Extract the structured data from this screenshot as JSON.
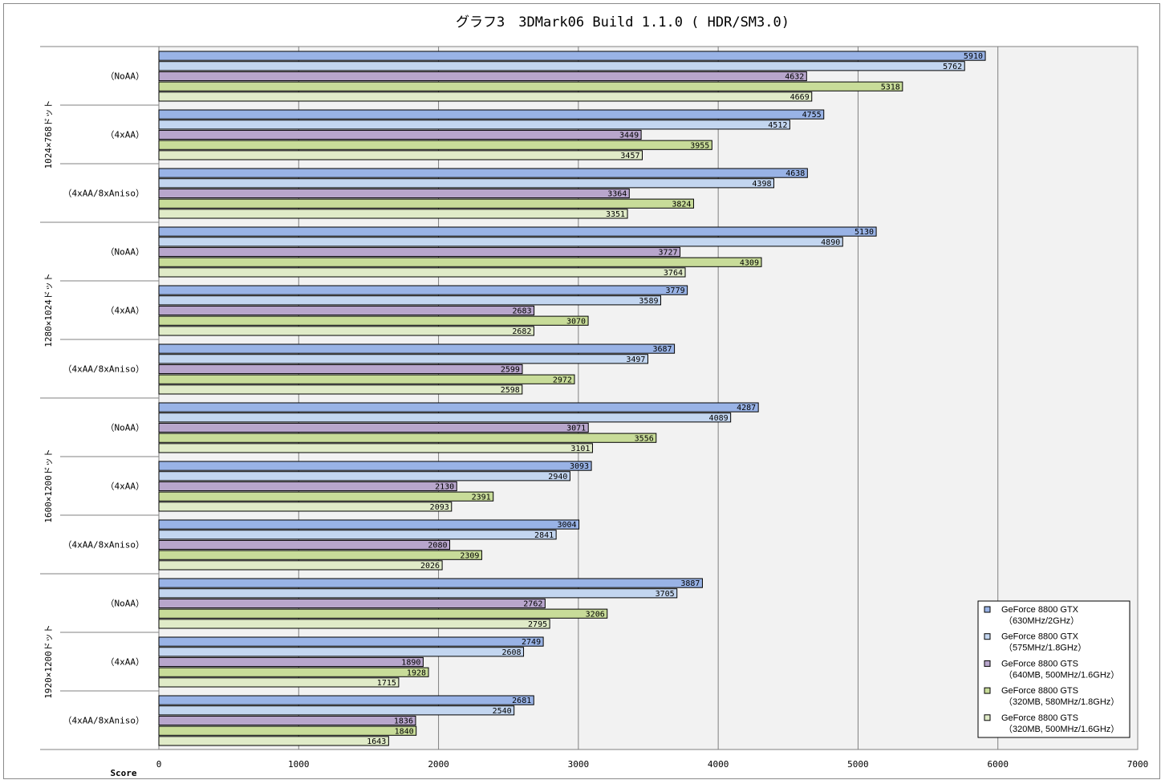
{
  "chart_data": {
    "type": "bar",
    "orientation": "horizontal",
    "title": "グラフ3　3DMark06 Build 1.1.0 ( HDR/SM3.0)",
    "xlabel": "Score",
    "xlim": [
      0,
      7000
    ],
    "xticks": [
      0,
      1000,
      2000,
      3000,
      4000,
      5000,
      6000,
      7000
    ],
    "grid": true,
    "legend_position": "bottom-right",
    "groups": [
      {
        "label": "1024×768ドット",
        "categories": [
          "（NoAA）",
          "（4xAA）",
          "（4xAA/8xAniso）"
        ]
      },
      {
        "label": "1280×1024ドット",
        "categories": [
          "（NoAA）",
          "（4xAA）",
          "（4xAA/8xAniso）"
        ]
      },
      {
        "label": "1600×1200ドット",
        "categories": [
          "（NoAA）",
          "（4xAA）",
          "（4xAA/8xAniso）"
        ]
      },
      {
        "label": "1920×1200ドット",
        "categories": [
          "（NoAA）",
          "（4xAA）",
          "（4xAA/8xAniso）"
        ]
      }
    ],
    "series": [
      {
        "name": [
          "GeForce 8800 GTX",
          "（630MHz/2GHz）"
        ],
        "color": "#99b3e6",
        "values": [
          5910,
          4755,
          4638,
          5130,
          3779,
          3687,
          4287,
          3093,
          3004,
          3887,
          2749,
          2681
        ]
      },
      {
        "name": [
          "GeForce 8800 GTX",
          "（575MHz/1.8GHz）"
        ],
        "color": "#c3d6f0",
        "values": [
          5762,
          4512,
          4398,
          4890,
          3589,
          3497,
          4089,
          2940,
          2841,
          3705,
          2608,
          2540
        ]
      },
      {
        "name": [
          "GeForce 8800 GTS",
          "（640MB, 500MHz/1.6GHz）"
        ],
        "color": "#b8a6cc",
        "values": [
          4632,
          3449,
          3364,
          3727,
          2683,
          2599,
          3071,
          2130,
          2080,
          2762,
          1890,
          1836
        ]
      },
      {
        "name": [
          "GeForce 8800 GTS",
          "（320MB, 580MHz/1.8GHz）"
        ],
        "color": "#c8dc99",
        "values": [
          5318,
          3955,
          3824,
          4309,
          3070,
          2972,
          3556,
          2391,
          2309,
          3206,
          1928,
          1840
        ]
      },
      {
        "name": [
          "GeForce 8800 GTS",
          "（320MB, 500MHz/1.6GHz）"
        ],
        "color": "#e0ebc8",
        "values": [
          4669,
          3457,
          3351,
          3764,
          2682,
          2598,
          3101,
          2093,
          2026,
          2795,
          1715,
          1643
        ]
      }
    ]
  }
}
